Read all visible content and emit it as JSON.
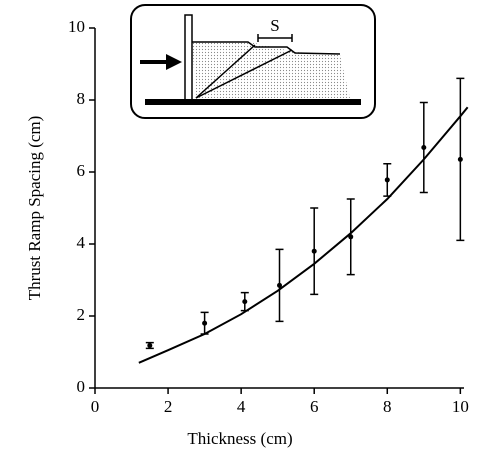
{
  "chart_data": {
    "type": "scatter",
    "xlabel": "Thickness (cm)",
    "ylabel": "Thrust Ramp Spacing (cm)",
    "inset_label": "S",
    "xlim": [
      0,
      10.1
    ],
    "ylim": [
      0,
      10
    ],
    "xticks": [
      0,
      2,
      4,
      6,
      8,
      10
    ],
    "yticks": [
      0,
      2,
      4,
      6,
      8,
      10
    ],
    "color": "#000000",
    "points": {
      "x": [
        1.5,
        3,
        4.1,
        5.05,
        6,
        7,
        8,
        9,
        10
      ],
      "values": [
        1.18,
        1.8,
        2.4,
        2.85,
        3.8,
        4.2,
        5.78,
        6.68,
        6.35
      ],
      "errors": [
        0.08,
        0.3,
        0.25,
        1.0,
        1.2,
        1.05,
        0.45,
        1.25,
        2.25
      ]
    },
    "fit": {
      "x": [
        1.2,
        2,
        3,
        4,
        5,
        6,
        7,
        8,
        9,
        10,
        10.2
      ],
      "values": [
        0.7,
        1.05,
        1.5,
        2.05,
        2.7,
        3.45,
        4.3,
        5.25,
        6.35,
        7.55,
        7.8
      ]
    }
  }
}
